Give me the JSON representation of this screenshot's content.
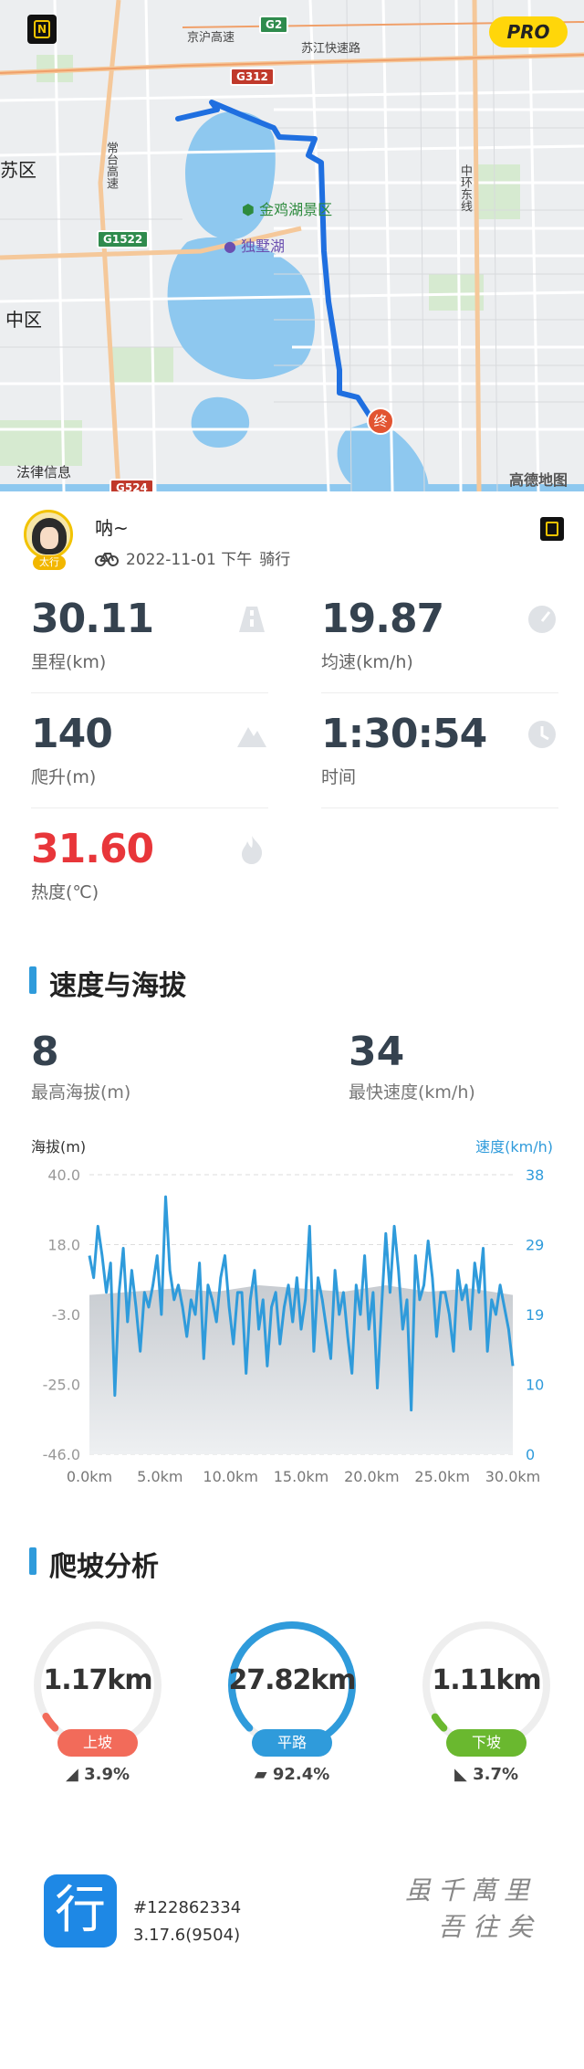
{
  "map": {
    "labels": {
      "suzhou": "苏区",
      "zhongqu": "中区",
      "jinji_scenic": "金鸡湖景区",
      "dushu_lake": "独墅湖",
      "jinghu": "京沪高速",
      "suzhou_express": "苏江快速路",
      "changtai": "常台高速",
      "zhonghuan": "中环东线"
    },
    "road_badges": {
      "g2": "G2",
      "g312": "G312",
      "g1522": "G1522",
      "g524": "G524"
    },
    "pro": "PRO",
    "legal": "法律信息",
    "provider": "高德地图",
    "end_marker": "终",
    "brand_icon": "N",
    "route_color": "#1f6fe0"
  },
  "profile": {
    "name": "呐~",
    "avatar_tag": "太行",
    "datetime": "2022-11-01 下午",
    "activity": "骑行"
  },
  "stats": [
    {
      "value": "30.11",
      "label": "里程(km)",
      "icon": "road-icon"
    },
    {
      "value": "19.87",
      "label": "均速(km/h)",
      "icon": "speedometer-icon"
    },
    {
      "value": "140",
      "label": "爬升(m)",
      "icon": "mountain-icon"
    },
    {
      "value": "1:30:54",
      "label": "时间",
      "icon": "clock-icon"
    },
    {
      "value": "31.60",
      "label": "热度(℃)",
      "icon": "flame-icon"
    }
  ],
  "speed_alt": {
    "title": "速度与海拔",
    "max_alt": {
      "value": "8",
      "label": "最高海拔(m)"
    },
    "max_speed": {
      "value": "34",
      "label": "最快速度(km/h)"
    }
  },
  "chart_data": {
    "type": "line",
    "left_axis_title": "海拔(m)",
    "right_axis_title": "速度(km/h)",
    "left_ticks": [
      "40.0",
      "18.0",
      "-3.0",
      "-25.0",
      "-46.0"
    ],
    "right_ticks": [
      "38",
      "29",
      "19",
      "10",
      "0"
    ],
    "x_ticks": [
      "0.0km",
      "5.0km",
      "10.0km",
      "15.0km",
      "20.0km",
      "25.0km",
      "30.0km"
    ],
    "x_range": [
      0,
      30
    ],
    "alt_range": [
      -46,
      40
    ],
    "speed_range": [
      0,
      38
    ],
    "altitude": {
      "x": [
        0,
        3,
        6,
        9,
        12,
        15,
        18,
        21,
        24,
        27,
        30
      ],
      "y": [
        3,
        4,
        5,
        4,
        6,
        5,
        4,
        6,
        4,
        5,
        3
      ]
    },
    "speed": {
      "x": [
        0,
        0.3,
        0.6,
        0.9,
        1.2,
        1.5,
        1.8,
        2.1,
        2.4,
        2.7,
        3.0,
        3.3,
        3.6,
        3.9,
        4.2,
        4.5,
        4.8,
        5.1,
        5.4,
        5.7,
        6.0,
        6.3,
        6.6,
        6.9,
        7.2,
        7.5,
        7.8,
        8.1,
        8.4,
        8.7,
        9.0,
        9.3,
        9.6,
        9.9,
        10.2,
        10.5,
        10.8,
        11.1,
        11.4,
        11.7,
        12.0,
        12.3,
        12.6,
        12.9,
        13.2,
        13.5,
        13.8,
        14.1,
        14.4,
        14.7,
        15.0,
        15.3,
        15.6,
        15.9,
        16.2,
        16.5,
        16.8,
        17.1,
        17.4,
        17.7,
        18.0,
        18.3,
        18.6,
        18.9,
        19.2,
        19.5,
        19.8,
        20.1,
        20.4,
        20.7,
        21.0,
        21.3,
        21.6,
        21.9,
        22.2,
        22.5,
        22.8,
        23.1,
        23.4,
        23.7,
        24.0,
        24.3,
        24.6,
        24.9,
        25.2,
        25.5,
        25.8,
        26.1,
        26.4,
        26.7,
        27.0,
        27.3,
        27.6,
        27.9,
        28.2,
        28.5,
        28.8,
        29.1,
        29.4,
        29.7,
        30.0
      ],
      "y": [
        27,
        24,
        31,
        27,
        22,
        26,
        8,
        22,
        28,
        18,
        25,
        20,
        14,
        22,
        20,
        23,
        27,
        19,
        35,
        25,
        21,
        23,
        20,
        16,
        21,
        19,
        26,
        13,
        23,
        21,
        18,
        24,
        27,
        20,
        15,
        22,
        22,
        11,
        21,
        25,
        17,
        21,
        12,
        20,
        22,
        15,
        20,
        23,
        18,
        24,
        17,
        21,
        31,
        14,
        24,
        21,
        17,
        13,
        25,
        19,
        22,
        16,
        11,
        23,
        19,
        27,
        17,
        22,
        9,
        20,
        30,
        22,
        31,
        25,
        17,
        21,
        6,
        27,
        21,
        23,
        29,
        24,
        16,
        22,
        22,
        19,
        14,
        25,
        21,
        23,
        17,
        26,
        22,
        28,
        14,
        21,
        19,
        23,
        20,
        17,
        12
      ]
    }
  },
  "climb": {
    "title": "爬坡分析",
    "items": [
      {
        "value": "1.17km",
        "label": "上坡",
        "percent": "3.9%",
        "fraction": 0.039,
        "color": "#f26b5a"
      },
      {
        "value": "27.82km",
        "label": "平路",
        "percent": "92.4%",
        "fraction": 0.924,
        "color": "#2f9bdb"
      },
      {
        "value": "1.11km",
        "label": "下坡",
        "percent": "3.7%",
        "fraction": 0.037,
        "color": "#6ab82f"
      }
    ]
  },
  "footer": {
    "app_glyph": "行",
    "id": "#122862334",
    "version": "3.17.6(9504)",
    "calligraphy_line1": "虽千萬里",
    "calligraphy_line2": "吾往矣"
  }
}
